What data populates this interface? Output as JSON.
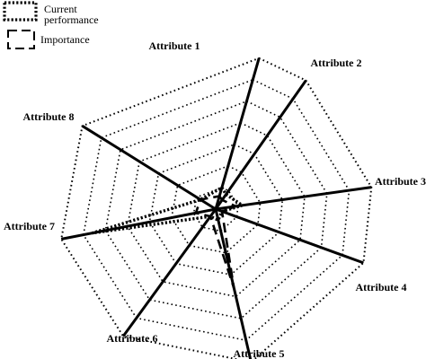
{
  "chart_data": {
    "type": "radar",
    "title": "",
    "axes": [
      "Attribute 1",
      "Attribute 2",
      "Attribute 3",
      "Attribute 4",
      "Attribute 5",
      "Attribute 6",
      "Attribute 7",
      "Attribute 8"
    ],
    "grid_levels": 7,
    "range": [
      0,
      7
    ],
    "grid": true,
    "legend_position": "top-left",
    "series": [
      {
        "name": "Current performance",
        "line_style": "dotted",
        "values": [
          1.0,
          0.8,
          1.2,
          0.3,
          0.5,
          0.4,
          5.6,
          0.8
        ]
      },
      {
        "name": "Importance",
        "line_style": "dashed",
        "values": [
          0.6,
          0.5,
          0.9,
          0.3,
          3.6,
          0.4,
          0.9,
          0.8
        ]
      }
    ],
    "legend": {
      "current_label_line1": "Current",
      "current_label_line2": "performance",
      "importance_label": "Importance"
    },
    "colors": {
      "ink": "#000000",
      "background": "#ffffff"
    }
  }
}
